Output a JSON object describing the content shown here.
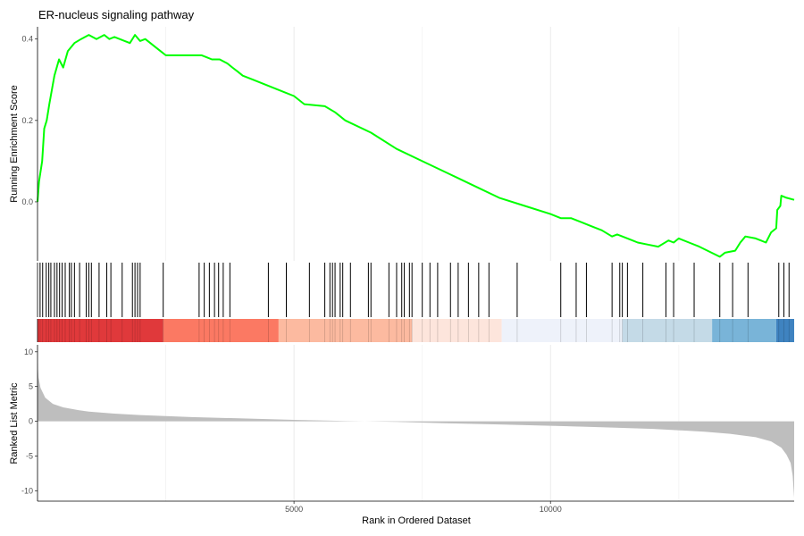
{
  "chart_data": {
    "type": "line",
    "title": "ER-nucleus signaling pathway",
    "xlabel": "Rank in Ordered Dataset",
    "xlim": [
      0,
      14750
    ],
    "x_ticks": [
      5000,
      10000
    ],
    "x_tick_labels": [
      "5000",
      "10000"
    ],
    "grid": true,
    "panels": [
      {
        "name": "running-es",
        "ylabel": "Running Enrichment Score",
        "ylim": [
          -0.145,
          0.43
        ],
        "y_ticks": [
          0.0,
          0.2,
          0.4
        ],
        "y_tick_labels": [
          "0.0",
          "0.2",
          "0.4"
        ],
        "series": [
          {
            "color": "#00ff00",
            "x": [
              0,
              30,
              90,
              130,
              180,
              230,
              330,
              420,
              500,
              590,
              720,
              850,
              1000,
              1150,
              1300,
              1400,
              1500,
              1600,
              1700,
              1800,
              1900,
              2000,
              2100,
              2200,
              2300,
              2400,
              2500,
              2750,
              3000,
              3200,
              3300,
              3400,
              3550,
              3700,
              3800,
              3900,
              4000,
              4200,
              4500,
              4800,
              5000,
              5200,
              5600,
              5800,
              6000,
              6500,
              7000,
              7500,
              8000,
              8500,
              9000,
              9500,
              10000,
              10200,
              10400,
              10600,
              10800,
              11000,
              11200,
              11300,
              11500,
              11600,
              11700,
              11900,
              12100,
              12300,
              12400,
              12500,
              12700,
              12900,
              13300,
              13400,
              13600,
              13700,
              13800,
              14000,
              14100,
              14200,
              14300,
              14400,
              14420,
              14480,
              14500,
              14600,
              14750
            ],
            "y": [
              0.0,
              0.05,
              0.1,
              0.18,
              0.2,
              0.24,
              0.31,
              0.35,
              0.33,
              0.37,
              0.39,
              0.4,
              0.41,
              0.4,
              0.41,
              0.4,
              0.405,
              0.4,
              0.395,
              0.39,
              0.41,
              0.395,
              0.4,
              0.39,
              0.38,
              0.37,
              0.36,
              0.36,
              0.36,
              0.36,
              0.355,
              0.35,
              0.35,
              0.34,
              0.33,
              0.32,
              0.31,
              0.3,
              0.285,
              0.27,
              0.26,
              0.24,
              0.235,
              0.22,
              0.2,
              0.17,
              0.13,
              0.1,
              0.07,
              0.04,
              0.01,
              -0.01,
              -0.03,
              -0.04,
              -0.04,
              -0.05,
              -0.06,
              -0.07,
              -0.085,
              -0.08,
              -0.09,
              -0.095,
              -0.1,
              -0.105,
              -0.11,
              -0.095,
              -0.1,
              -0.09,
              -0.1,
              -0.11,
              -0.135,
              -0.125,
              -0.12,
              -0.1,
              -0.085,
              -0.09,
              -0.095,
              -0.1,
              -0.075,
              -0.065,
              -0.02,
              -0.01,
              0.015,
              0.01,
              0.005
            ]
          }
        ]
      },
      {
        "name": "gene-hits",
        "hits": [
          50,
          100,
          170,
          220,
          260,
          330,
          380,
          430,
          480,
          540,
          620,
          660,
          720,
          820,
          950,
          1000,
          1050,
          1200,
          1350,
          1430,
          1650,
          1850,
          1900,
          1950,
          2000,
          2450,
          3150,
          3250,
          3350,
          3450,
          3530,
          3620,
          3750,
          4500,
          4850,
          5300,
          5600,
          5700,
          5750,
          5800,
          5900,
          5950,
          6100,
          6450,
          6500,
          6850,
          7000,
          7100,
          7150,
          7250,
          7300,
          7500,
          7650,
          7800,
          8050,
          8200,
          8400,
          8600,
          8800,
          9350,
          10200,
          10500,
          10700,
          11200,
          11350,
          11400,
          11500,
          11800,
          12250,
          12400,
          12800,
          13300,
          13550,
          13850,
          14450,
          14550,
          14650
        ]
      },
      {
        "name": "color-bar",
        "bands": [
          {
            "x0": 0,
            "x1": 2450,
            "color": "#e0393b"
          },
          {
            "x0": 2450,
            "x1": 4700,
            "color": "#fb7963"
          },
          {
            "x0": 4700,
            "x1": 7300,
            "color": "#fcbaa0"
          },
          {
            "x0": 7300,
            "x1": 9050,
            "color": "#fde5dc"
          },
          {
            "x0": 9050,
            "x1": 11400,
            "color": "#eef2fa"
          },
          {
            "x0": 11400,
            "x1": 13150,
            "color": "#c4dae7"
          },
          {
            "x0": 13150,
            "x1": 14400,
            "color": "#79b4d8"
          },
          {
            "x0": 14400,
            "x1": 14750,
            "color": "#3f83c0"
          }
        ]
      },
      {
        "name": "ranked-metric",
        "ylabel": "Ranked List Metric",
        "ylim": [
          -11.5,
          11
        ],
        "y_ticks": [
          10,
          5,
          0,
          -5,
          -10
        ],
        "y_tick_labels": [
          "10",
          "5",
          "0",
          "-5",
          "-10"
        ],
        "area": {
          "color": "#bebebe",
          "x": [
            0,
            20,
            60,
            150,
            300,
            500,
            800,
            1000,
            1500,
            2000,
            3000,
            4000,
            5000,
            6000,
            7000,
            8000,
            9000,
            10000,
            11000,
            12000,
            13000,
            13500,
            14000,
            14300,
            14500,
            14600,
            14680,
            14720,
            14750
          ],
          "y": [
            8.5,
            6.3,
            4.8,
            3.4,
            2.5,
            2.0,
            1.6,
            1.4,
            1.1,
            0.9,
            0.6,
            0.4,
            0.2,
            0.05,
            -0.1,
            -0.3,
            -0.45,
            -0.65,
            -0.85,
            -1.1,
            -1.5,
            -1.8,
            -2.3,
            -2.9,
            -3.8,
            -4.8,
            -6.0,
            -7.8,
            -11.0
          ]
        }
      }
    ]
  }
}
